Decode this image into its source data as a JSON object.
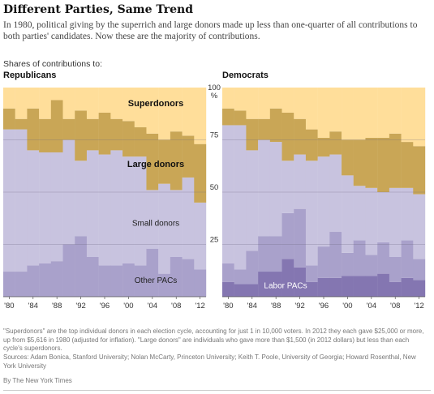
{
  "header": {
    "title": "Different Parties, Same Trend",
    "subtitle": "In 1980, political giving by the superrich and large donors made up less than one-quarter of all contributions to both parties' candidates. Now these are the majority of contributions.",
    "kicker": "Shares of contributions to:"
  },
  "chart_data": [
    {
      "type": "area",
      "panel": "Republicans",
      "x": [
        1980,
        1982,
        1984,
        1986,
        1988,
        1990,
        1992,
        1994,
        1996,
        1998,
        2000,
        2002,
        2004,
        2006,
        2008,
        2010,
        2012
      ],
      "ylim": [
        0,
        100
      ],
      "yticks": [
        "100",
        "75",
        "50",
        "25"
      ],
      "y_unit": "%",
      "xtick_labels": [
        "'80",
        "'84",
        "'88",
        "'92",
        "'96",
        "'00",
        "'04",
        "'08",
        "'12"
      ],
      "grid": true,
      "series": [
        {
          "name": "Superdonors",
          "values": [
            10,
            15,
            10,
            15,
            6,
            15,
            11,
            15,
            12,
            15,
            16,
            19,
            22,
            25,
            21,
            23,
            27
          ],
          "color": "#ffde9a"
        },
        {
          "name": "Large donors",
          "values": [
            10,
            5,
            20,
            16,
            25,
            10,
            24,
            15,
            20,
            15,
            17,
            14,
            27,
            21,
            28,
            20,
            28
          ],
          "color": "#c9a656"
        },
        {
          "name": "Small donors",
          "values": [
            68,
            68,
            55,
            53,
            52,
            50,
            36,
            51,
            53,
            55,
            51,
            52,
            28,
            43,
            32,
            39,
            32
          ],
          "color": "#c8c3df"
        },
        {
          "name": "Other PACs",
          "values": [
            12,
            12,
            15,
            16,
            17,
            25,
            29,
            19,
            15,
            15,
            16,
            15,
            23,
            11,
            19,
            18,
            13
          ],
          "color": "#a9a1cb"
        },
        {
          "name": "",
          "values": [
            0,
            0,
            0,
            0,
            0,
            0,
            0,
            0,
            0,
            0,
            0,
            0,
            0,
            0,
            0,
            0,
            0
          ],
          "color": "#8476b1"
        }
      ],
      "labels": {
        "superdonors": "Superdonors",
        "large": "Large donors",
        "small": "Small donors",
        "other": "Other PACs"
      }
    },
    {
      "type": "area",
      "panel": "Democrats",
      "x": [
        1980,
        1982,
        1984,
        1986,
        1988,
        1990,
        1992,
        1994,
        1996,
        1998,
        2000,
        2002,
        2004,
        2006,
        2008,
        2010,
        2012
      ],
      "ylim": [
        0,
        100
      ],
      "xtick_labels": [
        "'80",
        "'84",
        "'88",
        "'92",
        "'96",
        "'00",
        "'04",
        "'08",
        "'12"
      ],
      "grid": true,
      "series": [
        {
          "name": "",
          "values": [
            10,
            11,
            15,
            15,
            10,
            12,
            15,
            20,
            24,
            21,
            25,
            25,
            24,
            24,
            22,
            26,
            28
          ],
          "color": "#ffde9a"
        },
        {
          "name": "",
          "values": [
            8,
            7,
            15,
            10,
            16,
            23,
            17,
            15,
            9,
            11,
            17,
            22,
            24,
            26,
            26,
            22,
            23
          ],
          "color": "#c9a656"
        },
        {
          "name": "",
          "values": [
            66,
            69,
            48,
            46,
            45,
            25,
            26,
            50,
            43,
            37,
            37,
            26,
            32,
            24,
            33,
            25,
            31
          ],
          "color": "#c8c3df"
        },
        {
          "name": "",
          "values": [
            9,
            7,
            16,
            17,
            17,
            22,
            28,
            8,
            15,
            22,
            11,
            17,
            10,
            15,
            12,
            18,
            10
          ],
          "color": "#a9a1cb"
        },
        {
          "name": "Labor PACs",
          "values": [
            7,
            6,
            6,
            12,
            12,
            18,
            14,
            7,
            9,
            9,
            10,
            10,
            10,
            11,
            7,
            9,
            8
          ],
          "color": "#8476b1"
        }
      ],
      "labels": {
        "labor": "Labor PACs"
      }
    }
  ],
  "notes": {
    "definition": "\"Superdonors\" are the top individual donors in each election cycle, accounting for just 1 in 10,000 voters. In 2012 they each gave $25,000 or more, up from $5,616 in 1980 (adjusted for inflation). \"Large donors\" are individuals who gave more than $1,500 (in 2012 dollars) but less than each cycle's superdonors.",
    "sources": "Sources: Adam Bonica, Stanford University; Nolan McCarty, Princeton University; Keith T. Poole, University of Georgia; Howard Rosenthal, New York University",
    "credit": "By The New York Times"
  }
}
